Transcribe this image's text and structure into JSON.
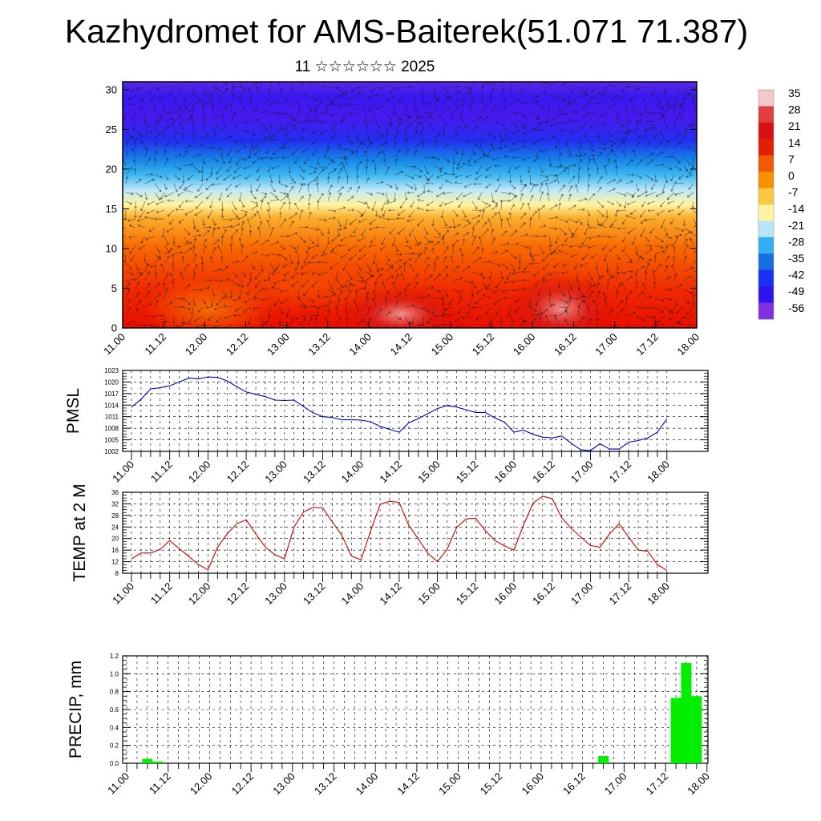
{
  "title": "Kazhydromet for AMS-Baiterek(51.071 71.387)",
  "subtitle": "11 ☆☆☆☆☆☆ 2025",
  "chart_data": [
    {
      "type": "heatmap",
      "x_tick_labels": [
        "11.00",
        "11.12",
        "12.00",
        "12.12",
        "13.00",
        "13.12",
        "14.00",
        "14.12",
        "15.00",
        "15.12",
        "16.00",
        "16.12",
        "17.00",
        "17.12",
        "18.00"
      ],
      "y_tick_labels": [
        "0",
        "5",
        "10",
        "15",
        "20",
        "25",
        "30"
      ],
      "ylim": [
        0,
        31
      ],
      "colorbar_labels": [
        "35",
        "28",
        "21",
        "14",
        "7",
        "0",
        "-7",
        "-14",
        "-21",
        "-28",
        "-35",
        "-42",
        "-49",
        "-56"
      ],
      "colorbar_colors": [
        "#f2c8c8",
        "#e04040",
        "#d81010",
        "#e02000",
        "#f05a00",
        "#f89000",
        "#fcc840",
        "#fff4a0",
        "#b8e6f8",
        "#30b0f0",
        "#1470e0",
        "#1830f0",
        "#3014f0",
        "#8030e0"
      ],
      "overlay": "wind vectors"
    },
    {
      "type": "line",
      "ylabel": "PMSL",
      "ylim": [
        1002,
        1023
      ],
      "y_ticks": [
        1002,
        1005,
        1008,
        1011,
        1014,
        1017,
        1020,
        1023
      ],
      "x_tick_labels": [
        "11.00",
        "11.12",
        "12.00",
        "12.12",
        "13.00",
        "13.12",
        "14.00",
        "14.12",
        "15.00",
        "15.12",
        "16.00",
        "16.12",
        "17.00",
        "17.12",
        "18.00"
      ],
      "series": [
        {
          "color": "#0000cc",
          "values": [
            1013.5,
            1015.5,
            1018.2,
            1018.5,
            1019,
            1020,
            1021,
            1020.8,
            1021.3,
            1021.2,
            1020.3,
            1018.8,
            1017.4,
            1016.8,
            1016.2,
            1015.3,
            1015.2,
            1015.3,
            1013.6,
            1012,
            1011,
            1010.8,
            1010.2,
            1010.2,
            1010.1,
            1009.7,
            1008.5,
            1007.7,
            1007,
            1009.4,
            1010.5,
            1011.8,
            1013.1,
            1013.9,
            1013.5,
            1012.8,
            1012.1,
            1012.1,
            1010.7,
            1009.6,
            1007,
            1007.5,
            1006.4,
            1005.7,
            1005.5,
            1006,
            1004.1,
            1002.4,
            1002.2,
            1004,
            1002.6,
            1002.6,
            1004.4,
            1004.8,
            1005.5,
            1007,
            1010.4
          ]
        }
      ]
    },
    {
      "type": "line",
      "ylabel": "TEMP at 2 M",
      "ylim": [
        8,
        36
      ],
      "y_ticks": [
        8,
        12,
        16,
        20,
        24,
        28,
        32,
        36
      ],
      "x_tick_labels": [
        "11.00",
        "11.12",
        "12.00",
        "12.12",
        "13.00",
        "13.12",
        "14.00",
        "14.12",
        "15.00",
        "15.12",
        "16.00",
        "16.12",
        "17.00",
        "17.12",
        "18.00"
      ],
      "series": [
        {
          "color": "#cc0000",
          "values": [
            13,
            15,
            15,
            16.3,
            19.3,
            16.5,
            13.8,
            11,
            9.2,
            17,
            21.6,
            25.1,
            26.5,
            21.6,
            17,
            14.4,
            13,
            24,
            29.2,
            30.8,
            30.6,
            25.8,
            21.1,
            14,
            12.6,
            22.5,
            31.8,
            32.9,
            32.5,
            24.6,
            19.8,
            14.9,
            12,
            16.2,
            23.8,
            26.8,
            27,
            22.8,
            19.3,
            17.5,
            16,
            24.6,
            32.3,
            34.6,
            33.8,
            27.2,
            23.5,
            20.5,
            17.6,
            17,
            21.6,
            25.1,
            20.5,
            16,
            15.6,
            11,
            9
          ]
        }
      ]
    },
    {
      "type": "bar",
      "ylabel": "PRECIP, mm",
      "ylim": [
        0,
        1.2
      ],
      "y_tick_labels": [
        "0.0",
        "0.2",
        "0.4",
        "0.6",
        "0.8",
        "1.0",
        "1.2"
      ],
      "x_tick_labels": [
        "11.00",
        "11.12",
        "12.00",
        "12.12",
        "13.00",
        "13.12",
        "14.00",
        "14.12",
        "15.00",
        "15.12",
        "16.00",
        "16.12",
        "17.00",
        "17.12",
        "18.00"
      ],
      "color": "#00ee00",
      "bars": [
        {
          "x": 0.5,
          "value": 0.05
        },
        {
          "x": 0.75,
          "value": 0.02
        },
        {
          "x": 11.5,
          "value": 0.08
        },
        {
          "x": 13.25,
          "value": 0.73
        },
        {
          "x": 13.5,
          "value": 1.12
        },
        {
          "x": 13.75,
          "value": 0.75
        }
      ]
    }
  ]
}
